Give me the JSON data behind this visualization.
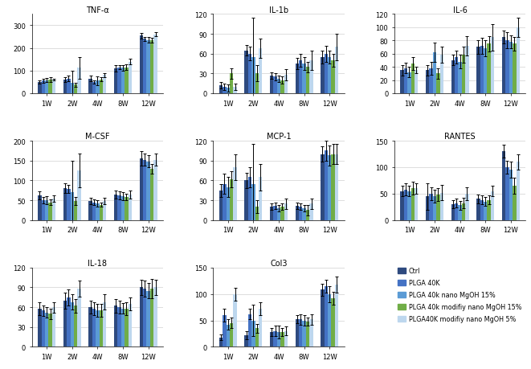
{
  "subplots": [
    {
      "title": "TNF-α",
      "ylim": [
        0,
        350
      ],
      "yticks": [
        0,
        100,
        200,
        300
      ],
      "series": [
        {
          "values": [
            50,
            60,
            65,
            110,
            255
          ],
          "errors": [
            8,
            10,
            12,
            15,
            12
          ]
        },
        {
          "values": [
            55,
            65,
            50,
            115,
            240
          ],
          "errors": [
            10,
            12,
            8,
            10,
            10
          ]
        },
        {
          "values": [
            58,
            45,
            55,
            112,
            235
          ],
          "errors": [
            8,
            55,
            20,
            12,
            12
          ]
        },
        {
          "values": [
            60,
            38,
            62,
            115,
            235
          ],
          "errors": [
            10,
            8,
            10,
            12,
            10
          ]
        },
        {
          "values": [
            60,
            112,
            80,
            140,
            260
          ],
          "errors": [
            5,
            48,
            8,
            12,
            8
          ]
        }
      ]
    },
    {
      "title": "IL-1b",
      "ylim": [
        0,
        120
      ],
      "yticks": [
        0,
        30,
        60,
        90,
        120
      ],
      "series": [
        {
          "values": [
            12,
            65,
            27,
            45,
            55
          ],
          "errors": [
            5,
            8,
            5,
            8,
            10
          ]
        },
        {
          "values": [
            10,
            60,
            25,
            50,
            60
          ],
          "errors": [
            5,
            10,
            5,
            10,
            12
          ]
        },
        {
          "values": [
            8,
            55,
            22,
            45,
            55
          ],
          "errors": [
            5,
            60,
            5,
            10,
            10
          ]
        },
        {
          "values": [
            30,
            30,
            20,
            40,
            50
          ],
          "errors": [
            8,
            12,
            5,
            8,
            10
          ]
        },
        {
          "values": [
            10,
            68,
            28,
            50,
            70
          ],
          "errors": [
            5,
            15,
            8,
            15,
            20
          ]
        }
      ]
    },
    {
      "title": "IL-6",
      "ylim": [
        0,
        120
      ],
      "yticks": [
        0,
        20,
        40,
        60,
        80,
        100,
        120
      ],
      "series": [
        {
          "values": [
            35,
            35,
            50,
            70,
            85
          ],
          "errors": [
            8,
            8,
            8,
            10,
            10
          ]
        },
        {
          "values": [
            38,
            38,
            55,
            72,
            80
          ],
          "errors": [
            8,
            10,
            10,
            12,
            12
          ]
        },
        {
          "values": [
            32,
            62,
            48,
            68,
            78
          ],
          "errors": [
            8,
            15,
            10,
            12,
            10
          ]
        },
        {
          "values": [
            45,
            30,
            58,
            75,
            75
          ],
          "errors": [
            10,
            8,
            12,
            12,
            10
          ]
        },
        {
          "values": [
            35,
            58,
            72,
            85,
            100
          ],
          "errors": [
            5,
            12,
            15,
            20,
            15
          ]
        }
      ]
    },
    {
      "title": "M-CSF",
      "ylim": [
        0,
        200
      ],
      "yticks": [
        0,
        50,
        100,
        150,
        200
      ],
      "series": [
        {
          "values": [
            62,
            80,
            48,
            65,
            155
          ],
          "errors": [
            10,
            12,
            8,
            10,
            18
          ]
        },
        {
          "values": [
            50,
            78,
            45,
            62,
            152
          ],
          "errors": [
            8,
            10,
            8,
            10,
            15
          ]
        },
        {
          "values": [
            50,
            70,
            42,
            60,
            148
          ],
          "errors": [
            10,
            80,
            8,
            10,
            15
          ]
        },
        {
          "values": [
            45,
            48,
            38,
            58,
            130
          ],
          "errors": [
            8,
            10,
            5,
            8,
            12
          ]
        },
        {
          "values": [
            55,
            125,
            48,
            65,
            152
          ],
          "errors": [
            8,
            42,
            8,
            10,
            15
          ]
        }
      ]
    },
    {
      "title": "MCP-1",
      "ylim": [
        0,
        120
      ],
      "yticks": [
        0,
        30,
        60,
        90,
        120
      ],
      "series": [
        {
          "values": [
            45,
            60,
            20,
            22,
            100
          ],
          "errors": [
            10,
            12,
            5,
            5,
            12
          ]
        },
        {
          "values": [
            55,
            65,
            22,
            20,
            105
          ],
          "errors": [
            15,
            15,
            5,
            5,
            15
          ]
        },
        {
          "values": [
            50,
            55,
            18,
            18,
            98
          ],
          "errors": [
            15,
            60,
            5,
            5,
            15
          ]
        },
        {
          "values": [
            62,
            20,
            20,
            15,
            100
          ],
          "errors": [
            12,
            10,
            5,
            8,
            15
          ]
        },
        {
          "values": [
            80,
            65,
            25,
            25,
            100
          ],
          "errors": [
            20,
            20,
            8,
            8,
            15
          ]
        }
      ]
    },
    {
      "title": "RANTES",
      "ylim": [
        0,
        150
      ],
      "yticks": [
        0,
        50,
        100,
        150
      ],
      "series": [
        {
          "values": [
            55,
            45,
            30,
            40,
            130
          ],
          "errors": [
            10,
            25,
            8,
            8,
            12
          ]
        },
        {
          "values": [
            58,
            50,
            32,
            38,
            100
          ],
          "errors": [
            12,
            12,
            8,
            8,
            12
          ]
        },
        {
          "values": [
            55,
            45,
            28,
            35,
            95
          ],
          "errors": [
            10,
            12,
            8,
            8,
            15
          ]
        },
        {
          "values": [
            60,
            48,
            32,
            38,
            65
          ],
          "errors": [
            12,
            12,
            10,
            8,
            15
          ]
        },
        {
          "values": [
            60,
            52,
            50,
            55,
            110
          ],
          "errors": [
            10,
            15,
            12,
            10,
            15
          ]
        }
      ]
    },
    {
      "title": "IL-18",
      "ylim": [
        0,
        120
      ],
      "yticks": [
        0,
        30,
        60,
        90,
        120
      ],
      "series": [
        {
          "values": [
            58,
            70,
            60,
            62,
            90
          ],
          "errors": [
            10,
            12,
            10,
            10,
            12
          ]
        },
        {
          "values": [
            55,
            75,
            58,
            60,
            88
          ],
          "errors": [
            8,
            12,
            10,
            10,
            12
          ]
        },
        {
          "values": [
            52,
            68,
            55,
            58,
            85
          ],
          "errors": [
            8,
            12,
            10,
            8,
            12
          ]
        },
        {
          "values": [
            50,
            62,
            55,
            58,
            88
          ],
          "errors": [
            8,
            10,
            10,
            10,
            15
          ]
        },
        {
          "values": [
            60,
            88,
            68,
            65,
            90
          ],
          "errors": [
            8,
            12,
            12,
            10,
            12
          ]
        }
      ]
    },
    {
      "title": "Col3",
      "ylim": [
        0,
        150
      ],
      "yticks": [
        0,
        50,
        100,
        150
      ],
      "series": [
        {
          "values": [
            18,
            22,
            28,
            52,
            108
          ],
          "errors": [
            5,
            8,
            8,
            8,
            12
          ]
        },
        {
          "values": [
            60,
            62,
            30,
            52,
            115
          ],
          "errors": [
            12,
            10,
            10,
            10,
            12
          ]
        },
        {
          "values": [
            42,
            50,
            28,
            50,
            100
          ],
          "errors": [
            10,
            30,
            12,
            10,
            15
          ]
        },
        {
          "values": [
            45,
            35,
            28,
            48,
            92
          ],
          "errors": [
            10,
            8,
            8,
            8,
            12
          ]
        },
        {
          "values": [
            100,
            72,
            30,
            52,
            118
          ],
          "errors": [
            12,
            12,
            8,
            10,
            15
          ]
        }
      ]
    }
  ],
  "categories": [
    "1W",
    "2W",
    "4W",
    "8W",
    "12W"
  ],
  "colors": [
    "#2E4A7F",
    "#4472C4",
    "#5B9BD5",
    "#70AD47",
    "#BDD7EE"
  ],
  "legend_labels": [
    "Ctrl",
    "PLGA 40K",
    "PLGA 40k nano MgOH 15%",
    "PLGA 40k modifiy nano MgOH 15%",
    "PLGA40K modifiy nano MgOH 5%"
  ],
  "bar_width": 0.14
}
